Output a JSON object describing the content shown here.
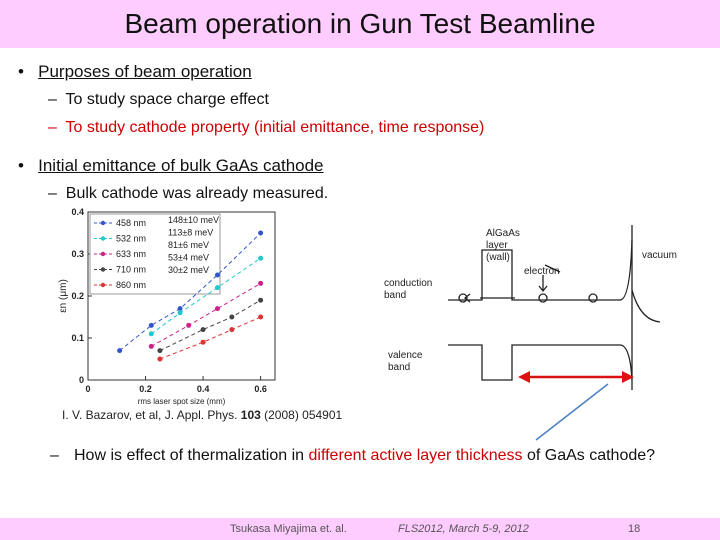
{
  "header": {
    "title": "Beam operation in Gun Test Beamline"
  },
  "bullets": [
    {
      "text": "Purposes of beam operation",
      "subs": [
        "To study space charge effect",
        "To study cathode property (initial emittance, time response)"
      ]
    },
    {
      "text": "Initial emittance of bulk GaAs cathode",
      "subs": [
        "Bulk cathode was already measured."
      ]
    }
  ],
  "question": [
    "How is effect of thermalization in ",
    "different active layer thickness",
    " of GaAs cathode?"
  ],
  "caption": [
    "I. V. Bazarov, et al, J. Appl. Phys. ",
    "103",
    " (2008) 054901"
  ],
  "diagram": {
    "layer": [
      "AlGaAs",
      "layer",
      "(wall)"
    ],
    "vacuum": "vacuum",
    "electron": "electron",
    "conduction": [
      "conduction",
      "band"
    ],
    "valence": [
      "valence",
      "band"
    ]
  },
  "footer": {
    "author": "Tsukasa Miyajima et. al.",
    "event": "FLS2012, March 5-9, 2012",
    "page": "18"
  },
  "chart_data": {
    "type": "scatter",
    "xlabel": "rms laser spot size (mm)",
    "ylabel": "εn (μm)",
    "xlim": [
      0,
      0.65
    ],
    "ylim": [
      0,
      0.4
    ],
    "xticks": [
      0,
      0.2,
      0.4,
      0.6
    ],
    "yticks": [
      0,
      0.1,
      0.2,
      0.3,
      0.4
    ],
    "energies": [
      "148±10 meV",
      "113±8 meV",
      "81±6 meV",
      "53±4 meV",
      "30±2 meV"
    ],
    "series": [
      {
        "name": "458 nm",
        "color": "#3355cc",
        "x": [
          0.11,
          0.22,
          0.32,
          0.45,
          0.6
        ],
        "values": [
          0.07,
          0.13,
          0.17,
          0.25,
          0.35
        ]
      },
      {
        "name": "532 nm",
        "color": "#22c8cc",
        "x": [
          0.22,
          0.32,
          0.45,
          0.6
        ],
        "values": [
          0.11,
          0.16,
          0.22,
          0.29
        ]
      },
      {
        "name": "633 nm",
        "color": "#cc2288",
        "x": [
          0.22,
          0.35,
          0.45,
          0.6
        ],
        "values": [
          0.08,
          0.13,
          0.17,
          0.23
        ]
      },
      {
        "name": "710 nm",
        "color": "#444444",
        "x": [
          0.25,
          0.4,
          0.5,
          0.6
        ],
        "values": [
          0.07,
          0.12,
          0.15,
          0.19
        ]
      },
      {
        "name": "860 nm",
        "color": "#dd3333",
        "x": [
          0.25,
          0.4,
          0.5,
          0.6
        ],
        "values": [
          0.05,
          0.09,
          0.12,
          0.15
        ]
      }
    ]
  }
}
